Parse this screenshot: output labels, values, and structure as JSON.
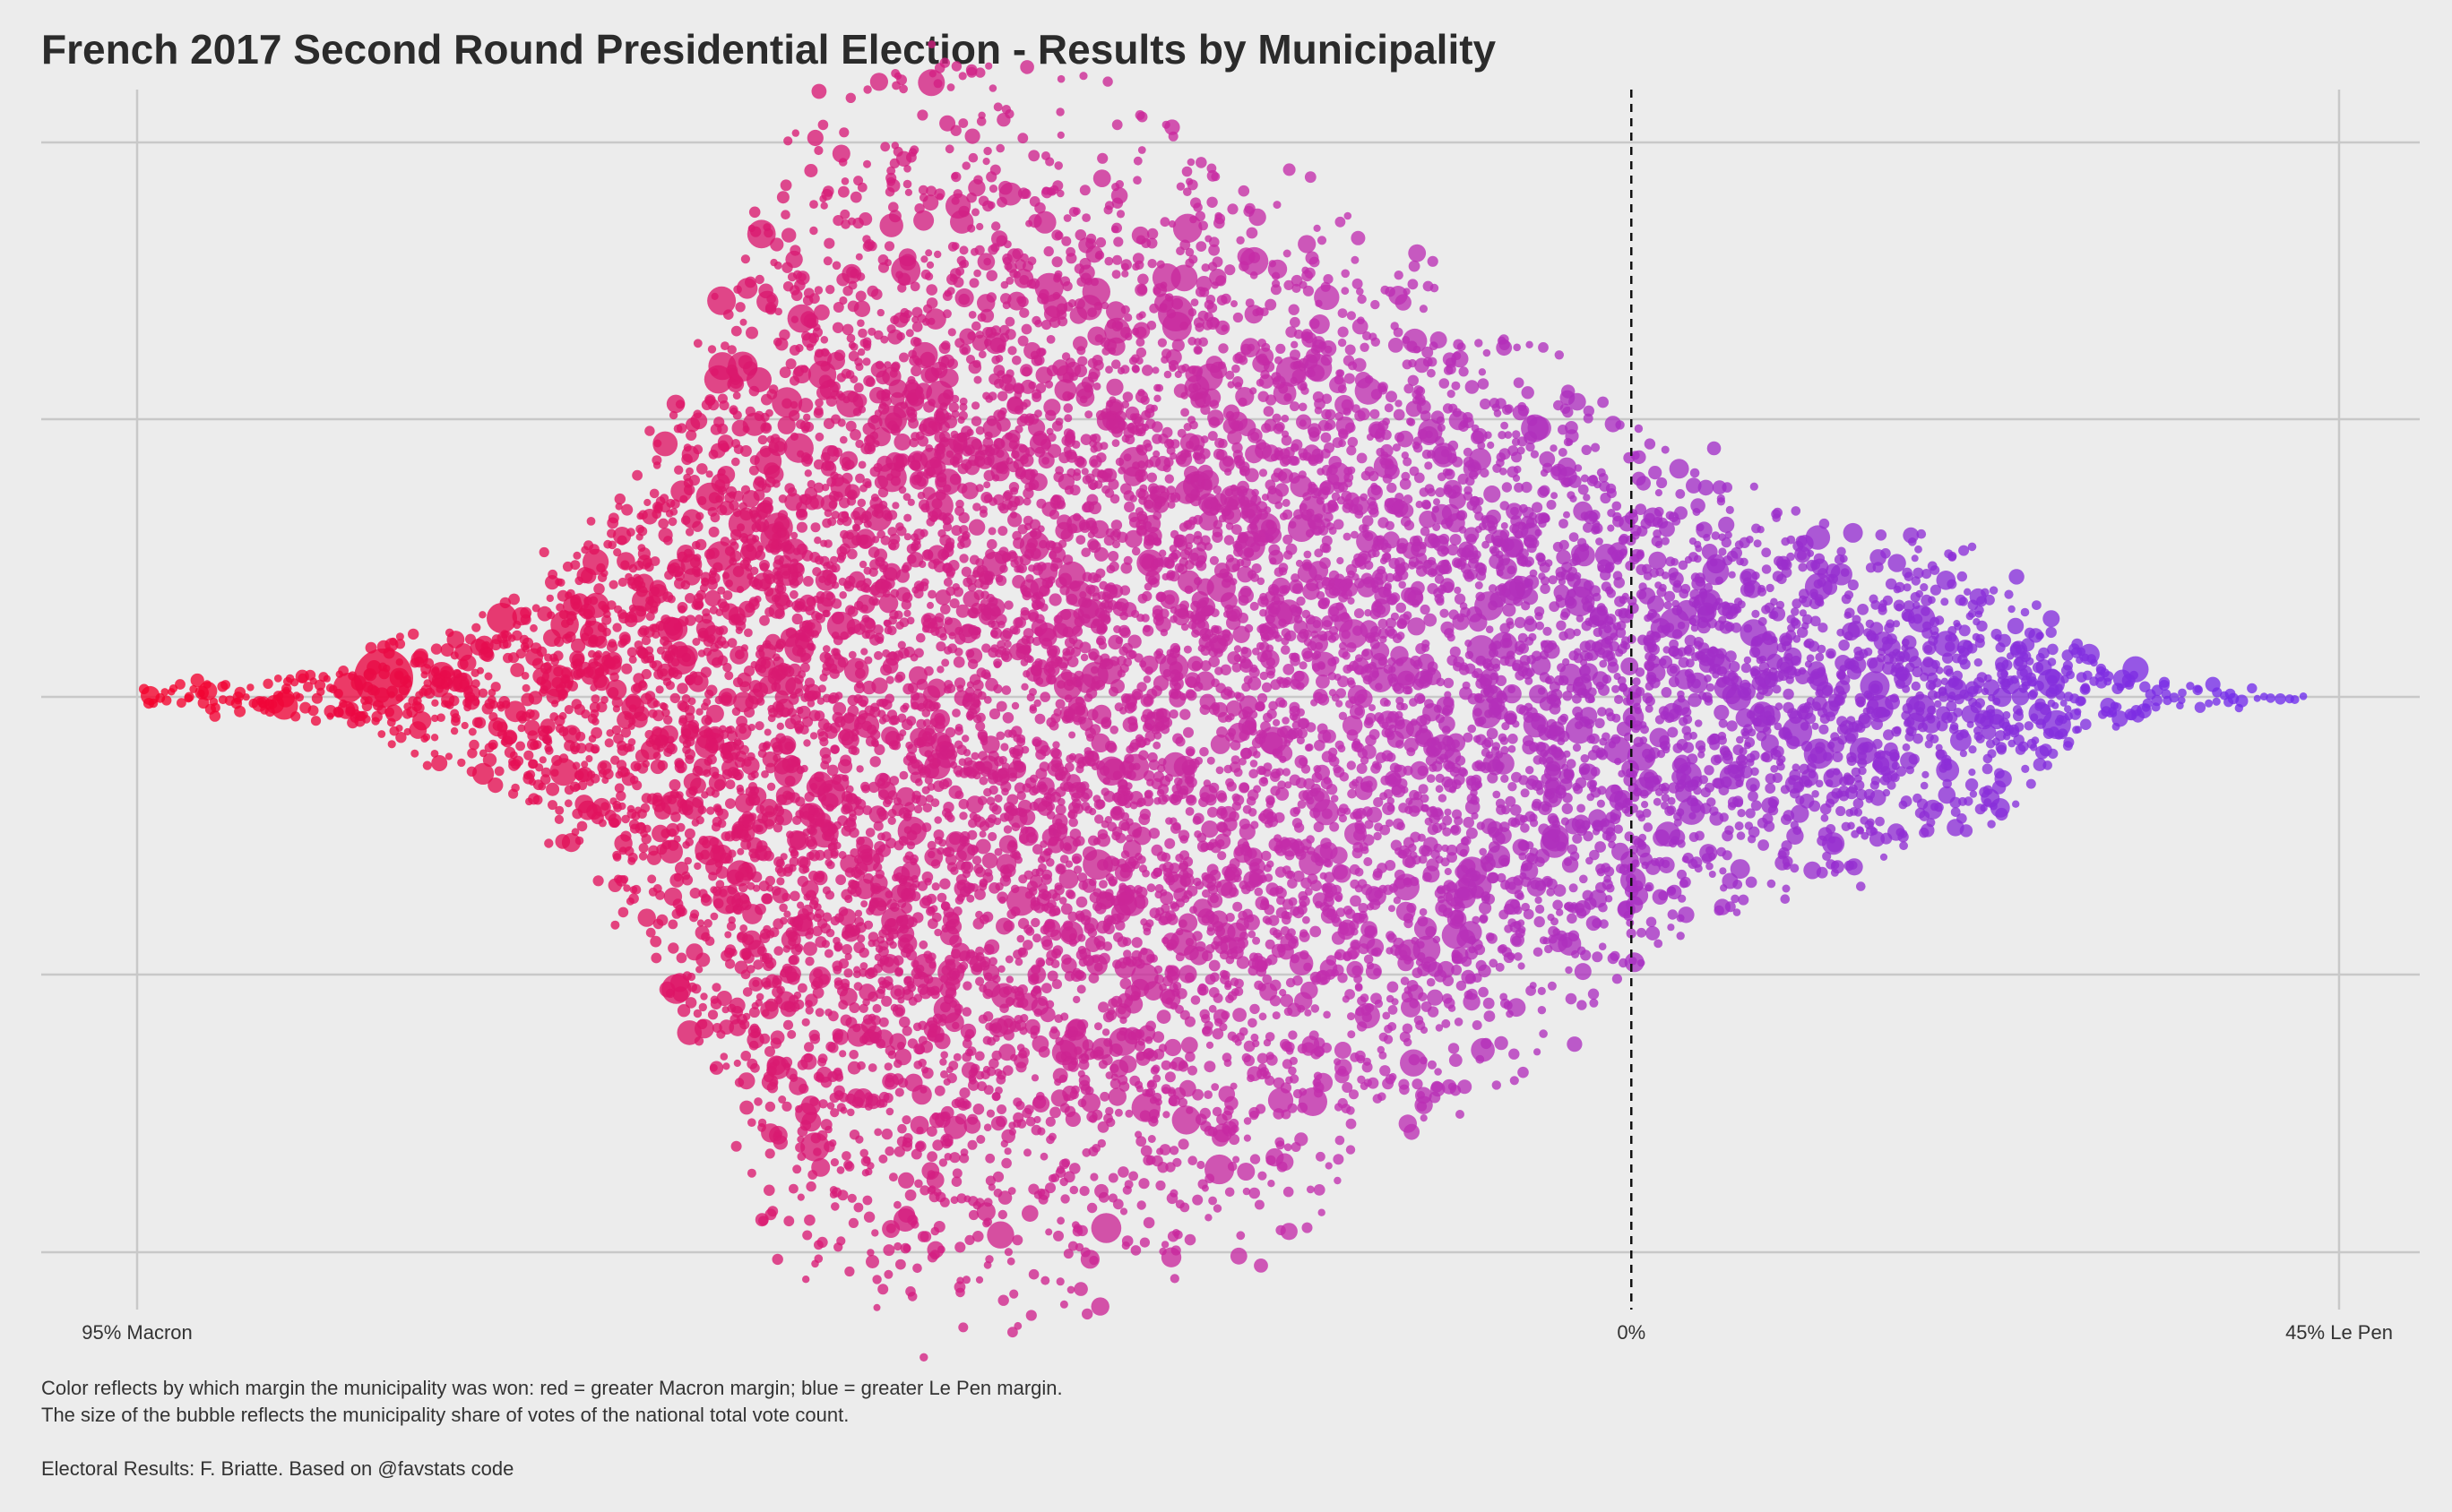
{
  "chart_data": {
    "type": "scatter",
    "subtype": "beeswarm",
    "title": "French 2017 Second Round Presidential Election - Results by Municipality",
    "x_axis": {
      "ticks": [
        {
          "value": -95,
          "label": "95% Macron"
        },
        {
          "value": 0,
          "label": "0%"
        },
        {
          "value": 45,
          "label": "45% Le Pen"
        }
      ],
      "range": [
        -95,
        45
      ],
      "reference_line": {
        "value": 0,
        "style": "dashed"
      }
    },
    "y_axis": {
      "visible_labels": false,
      "gridlines": 5
    },
    "grid": true,
    "color_scale": {
      "low": "#f5002a",
      "mid": "#c12fb0",
      "high": "#6b2df0",
      "meaning": ""
    },
    "notes": [
      "Color reflects by which margin the municipality was won: red = greater Macron margin; blue = greater Le Pen margin.",
      "The size of the bubble reflects the municipality share of votes of the national total vote count."
    ],
    "source": "Electoral Results: F. Briatte. Based on @favstats code"
  },
  "colors": {
    "background": "#ececec",
    "grid": "#c8c8c8",
    "reference_line": "#111111"
  }
}
